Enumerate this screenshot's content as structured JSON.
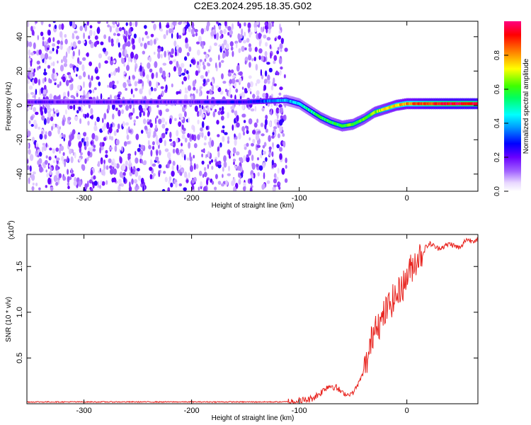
{
  "title": "C2E3.2024.295.18.35.G02",
  "chart_data": [
    {
      "type": "heatmap",
      "xlabel": "Height of straight line (km)",
      "ylabel": "Frequency (Hz)",
      "xlim": [
        -353,
        66
      ],
      "ylim": [
        -50,
        49
      ],
      "xticks": [
        -300,
        -200,
        -100,
        0
      ],
      "yticks": [
        -40,
        -20,
        0,
        20,
        40
      ],
      "colorbar": {
        "label": "Normalized spectral amplitude",
        "range": [
          0,
          1
        ],
        "ticks": [
          0.0,
          0.2,
          0.4,
          0.6,
          0.8
        ],
        "tick_labels": [
          "0.0",
          "0.2",
          "0.4",
          "0.6",
          "0.8"
        ]
      },
      "noise_region_x": [
        -353,
        -112
      ],
      "ridge": {
        "x": [
          -353,
          -300,
          -250,
          -200,
          -150,
          -112,
          -100,
          -90,
          -80,
          -70,
          -60,
          -50,
          -40,
          -30,
          -20,
          -10,
          0,
          10,
          20,
          40,
          66
        ],
        "freq": [
          2,
          2,
          2,
          2,
          2,
          3,
          1,
          -3,
          -7,
          -10,
          -12,
          -11,
          -8,
          -4,
          -2,
          0,
          1,
          1,
          1,
          1,
          1
        ],
        "amplitude": [
          0.2,
          0.2,
          0.2,
          0.2,
          0.25,
          0.4,
          0.45,
          0.5,
          0.55,
          0.55,
          0.6,
          0.6,
          0.6,
          0.65,
          0.7,
          0.75,
          0.8,
          0.85,
          0.9,
          0.95,
          0.95
        ]
      }
    },
    {
      "type": "line",
      "xlabel": "Height of straight line (km)",
      "ylabel": "SNR (10 * v/v)",
      "scale_label": "(x10",
      "scale_exp": "4",
      "scale_close": ")",
      "xlim": [
        -353,
        66
      ],
      "ylim": [
        0,
        1.85
      ],
      "xticks": [
        -300,
        -200,
        -100,
        0
      ],
      "yticks": [
        0.5,
        1.0,
        1.5
      ],
      "ytick_labels": [
        "0.5",
        "1.0",
        "1.5"
      ],
      "series": [
        {
          "color": "#e8231e",
          "x": [
            -353,
            -340,
            -300,
            -250,
            -200,
            -150,
            -115,
            -100,
            -90,
            -85,
            -80,
            -75,
            -70,
            -65,
            -60,
            -55,
            -50,
            -45,
            -40,
            -35,
            -32,
            -28,
            -25,
            -22,
            -18,
            -15,
            -12,
            -8,
            -5,
            -2,
            0,
            5,
            10,
            15,
            18,
            22,
            28,
            35,
            40,
            45,
            50,
            55,
            60,
            66
          ],
          "y": [
            0.02,
            0.02,
            0.02,
            0.02,
            0.02,
            0.02,
            0.02,
            0.03,
            0.05,
            0.08,
            0.12,
            0.18,
            0.2,
            0.17,
            0.12,
            0.1,
            0.12,
            0.22,
            0.35,
            0.55,
            0.75,
            0.95,
            0.85,
            0.95,
            1.05,
            1.1,
            1.15,
            1.2,
            1.3,
            1.3,
            1.4,
            1.5,
            1.6,
            1.65,
            1.72,
            1.75,
            1.7,
            1.72,
            1.75,
            1.72,
            1.7,
            1.8,
            1.78,
            1.8
          ]
        }
      ]
    }
  ]
}
